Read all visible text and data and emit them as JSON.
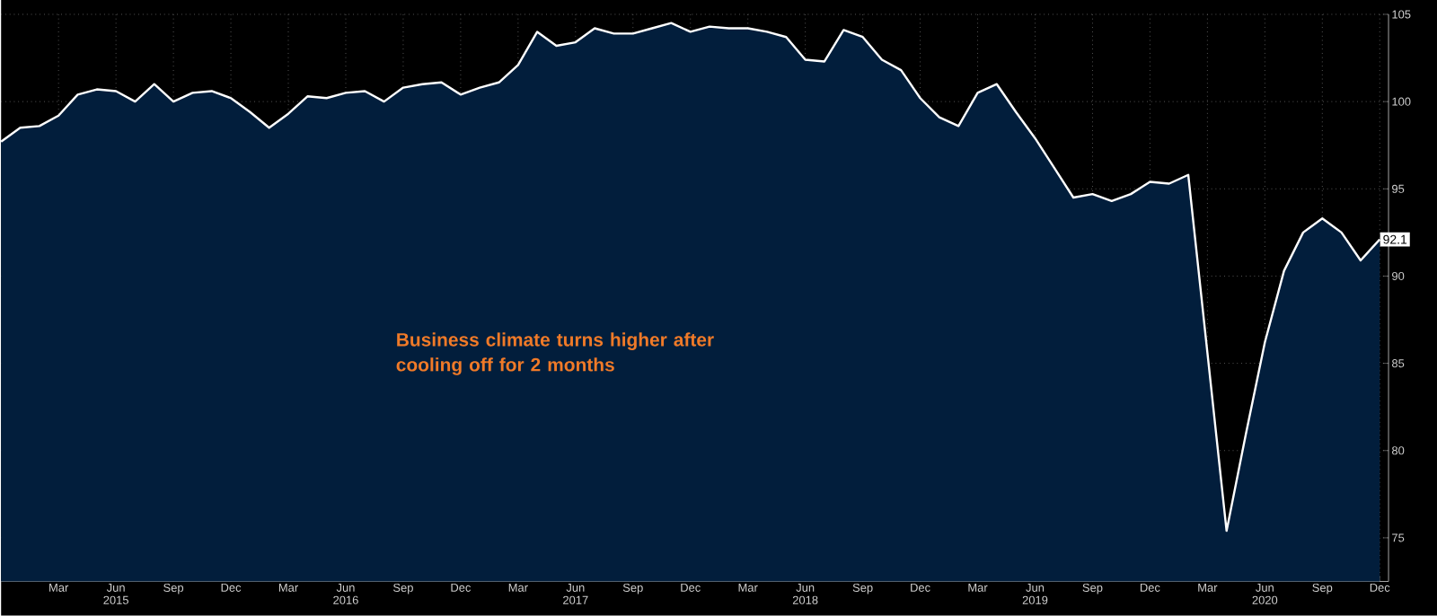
{
  "chart_data": {
    "type": "area",
    "x": [
      "2014-12",
      "2015-01",
      "2015-02",
      "2015-03",
      "2015-04",
      "2015-05",
      "2015-06",
      "2015-07",
      "2015-08",
      "2015-09",
      "2015-10",
      "2015-11",
      "2015-12",
      "2016-01",
      "2016-02",
      "2016-03",
      "2016-04",
      "2016-05",
      "2016-06",
      "2016-07",
      "2016-08",
      "2016-09",
      "2016-10",
      "2016-11",
      "2016-12",
      "2017-01",
      "2017-02",
      "2017-03",
      "2017-04",
      "2017-05",
      "2017-06",
      "2017-07",
      "2017-08",
      "2017-09",
      "2017-10",
      "2017-11",
      "2017-12",
      "2018-01",
      "2018-02",
      "2018-03",
      "2018-04",
      "2018-05",
      "2018-06",
      "2018-07",
      "2018-08",
      "2018-09",
      "2018-10",
      "2018-11",
      "2018-12",
      "2019-01",
      "2019-02",
      "2019-03",
      "2019-04",
      "2019-05",
      "2019-06",
      "2019-07",
      "2019-08",
      "2019-09",
      "2019-10",
      "2019-11",
      "2019-12",
      "2020-01",
      "2020-02",
      "2020-03",
      "2020-04",
      "2020-05",
      "2020-06",
      "2020-07",
      "2020-08",
      "2020-09",
      "2020-10",
      "2020-11",
      "2020-12"
    ],
    "series": [
      {
        "color": "#021e3c",
        "values": [
          97.7,
          98.5,
          98.6,
          99.2,
          100.4,
          100.7,
          100.6,
          100.0,
          101.0,
          100.0,
          100.5,
          100.6,
          100.2,
          99.4,
          98.5,
          99.3,
          100.3,
          100.2,
          100.5,
          100.6,
          100.0,
          100.8,
          101.0,
          101.1,
          100.4,
          100.8,
          101.1,
          102.1,
          104.0,
          103.2,
          103.4,
          104.2,
          103.9,
          103.9,
          104.2,
          104.5,
          104.0,
          104.3,
          104.2,
          104.2,
          104.0,
          103.7,
          102.4,
          102.3,
          104.1,
          103.7,
          102.4,
          101.8,
          100.2,
          99.1,
          98.6,
          100.5,
          101.0,
          99.4,
          97.9,
          96.2,
          94.5,
          94.7,
          94.3,
          94.7,
          95.4,
          95.3,
          95.8,
          85.6,
          75.4,
          80.9,
          86.2,
          90.3,
          92.5,
          93.3,
          92.5,
          90.9,
          92.1
        ],
        "value_labels": [
          null,
          null,
          null,
          null,
          null,
          null,
          null,
          null,
          null,
          null,
          null,
          null,
          null,
          null,
          null,
          null,
          null,
          null,
          null,
          null,
          null,
          null,
          null,
          null,
          null,
          null,
          null,
          null,
          null,
          null,
          null,
          null,
          null,
          null,
          null,
          null,
          null,
          null,
          null,
          null,
          null,
          null,
          null,
          null,
          null,
          null,
          null,
          null,
          null,
          null,
          null,
          null,
          null,
          null,
          null,
          null,
          null,
          null,
          null,
          null,
          null,
          null,
          null,
          null,
          null,
          null,
          null,
          null,
          null,
          null,
          null,
          null,
          "92.1"
        ]
      }
    ],
    "xlim": [
      "2014-12",
      "2020-12-15"
    ],
    "xticks": [
      {
        "value": "2015-03",
        "label": "Mar"
      },
      {
        "value": "2015-06",
        "label": "Jun 2015"
      },
      {
        "value": "2015-09",
        "label": "Sep"
      },
      {
        "value": "2015-12",
        "label": "Dec"
      },
      {
        "value": "2016-03",
        "label": "Mar"
      },
      {
        "value": "2016-06",
        "label": "Jun 2016"
      },
      {
        "value": "2016-09",
        "label": "Sep"
      },
      {
        "value": "2016-12",
        "label": "Dec"
      },
      {
        "value": "2017-03",
        "label": "Mar"
      },
      {
        "value": "2017-06",
        "label": "Jun 2017"
      },
      {
        "value": "2017-09",
        "label": "Sep"
      },
      {
        "value": "2017-12",
        "label": "Dec"
      },
      {
        "value": "2018-03",
        "label": "Mar"
      },
      {
        "value": "2018-06",
        "label": "Jun 2018"
      },
      {
        "value": "2018-09",
        "label": "Sep"
      },
      {
        "value": "2018-12",
        "label": "Dec"
      },
      {
        "value": "2019-03",
        "label": "Mar"
      },
      {
        "value": "2019-06",
        "label": "Jun 2019"
      },
      {
        "value": "2019-09",
        "label": "Sep"
      },
      {
        "value": "2019-12",
        "label": "Dec"
      },
      {
        "value": "2020-03",
        "label": "Mar"
      },
      {
        "value": "2020-06",
        "label": "Jun 2020"
      },
      {
        "value": "2020-09",
        "label": "Sep"
      },
      {
        "value": "2020-12",
        "label": "Dec"
      }
    ],
    "ylim": [
      72.5,
      105
    ],
    "yticks": [
      75,
      80,
      85,
      90,
      95,
      100,
      105
    ],
    "grid": true,
    "annotations": [
      "Business climate turns higher after cooling off for 2 months"
    ]
  }
}
